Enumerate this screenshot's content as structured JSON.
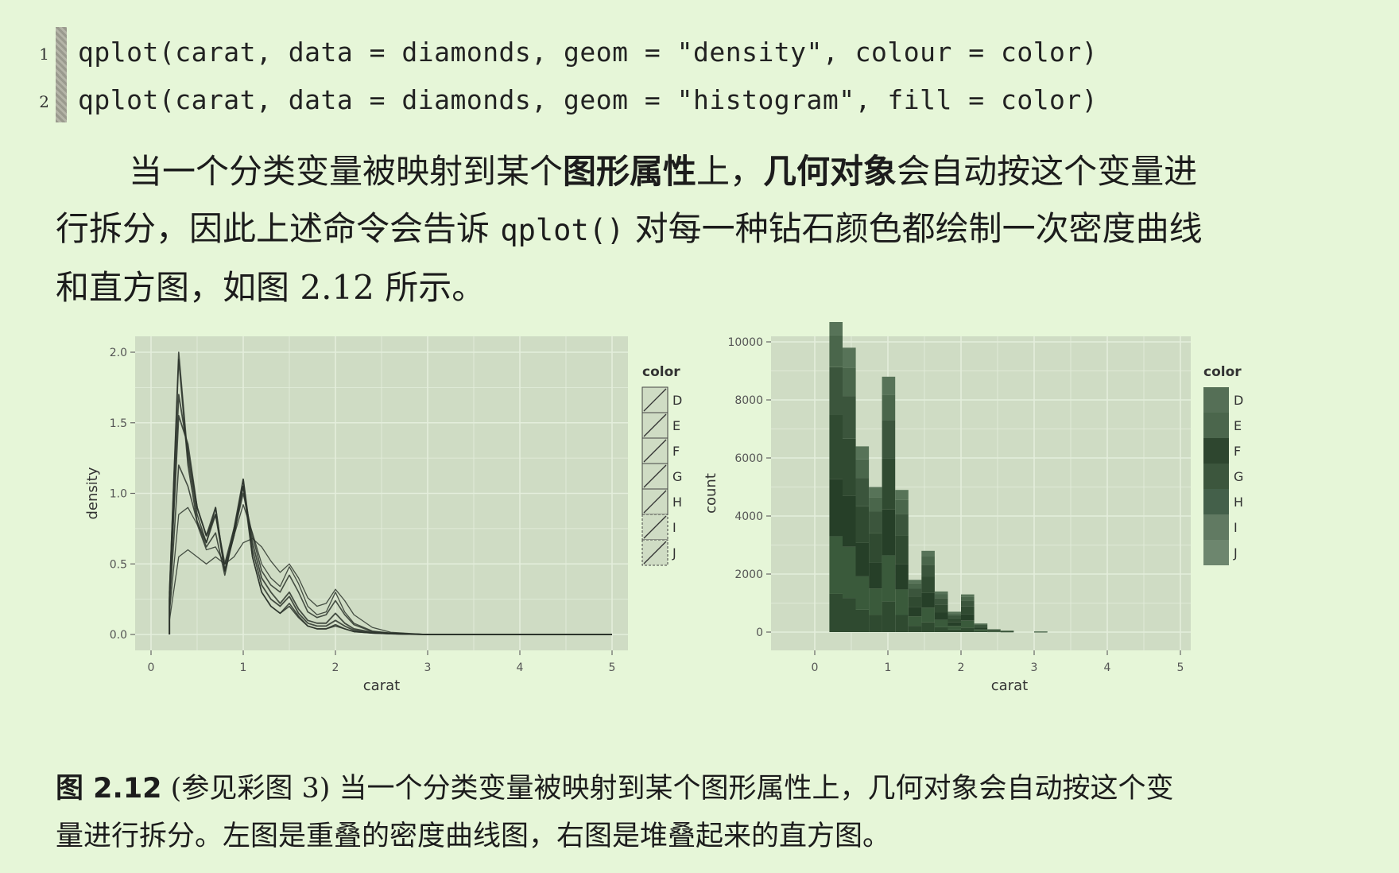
{
  "code": [
    {
      "num": "1",
      "text": "qplot(carat, data = diamonds, geom = \"density\", colour = color)"
    },
    {
      "num": "2",
      "text": "qplot(carat, data = diamonds, geom = \"histogram\", fill = color)"
    }
  ],
  "paragraph": {
    "p1": "当一个分类变量被映射到某个",
    "b1": "图形属性",
    "p2": "上，",
    "b2": "几何对象",
    "p3": "会自动按这个变量进",
    "p4": "行拆分，因此上述命令会告诉 ",
    "code": "qplot()",
    "p5": " 对每一种钻石颜色都绘制一次密度曲线",
    "p6": "和直方图，如图 2.12 所示。"
  },
  "caption": {
    "label": "图 2.12",
    "line1": " (参见彩图 3) 当一个分类变量被映射到某个图形属性上，几何对象会自动按这个变",
    "line2": "量进行拆分。左图是重叠的密度曲线图，右图是堆叠起来的直方图。"
  },
  "colors": {
    "page_bg": "#e6f6d8",
    "panel_bg": "#cfdcc4",
    "grid": "#e4eedc",
    "ink": "#2b342b"
  },
  "chart_data": [
    {
      "type": "line",
      "geom": "density",
      "xlabel": "carat",
      "ylabel": "density",
      "xlim": [
        0,
        5
      ],
      "ylim": [
        0,
        2.0
      ],
      "xticks": [
        "0",
        "1",
        "2",
        "3",
        "4",
        "5"
      ],
      "yticks": [
        "0.0",
        "0.5",
        "1.0",
        "1.5",
        "2.0"
      ],
      "legend": {
        "title": "color",
        "position": "right",
        "keys": [
          "D",
          "E",
          "F",
          "G",
          "H",
          "I",
          "J"
        ]
      },
      "x": [
        0.2,
        0.3,
        0.4,
        0.5,
        0.6,
        0.7,
        0.8,
        0.9,
        1.0,
        1.1,
        1.2,
        1.3,
        1.4,
        1.5,
        1.6,
        1.7,
        1.8,
        1.9,
        2.0,
        2.1,
        2.2,
        2.4,
        2.6,
        3.0,
        4.0,
        5.0
      ],
      "series": [
        {
          "name": "D",
          "values": [
            0.3,
            1.95,
            1.2,
            0.8,
            0.65,
            0.85,
            0.45,
            0.7,
            1.05,
            0.55,
            0.3,
            0.2,
            0.15,
            0.2,
            0.12,
            0.06,
            0.04,
            0.04,
            0.06,
            0.04,
            0.02,
            0.01,
            0.005,
            0.0,
            0.0,
            0.0
          ]
        },
        {
          "name": "E",
          "values": [
            0.3,
            2.0,
            1.25,
            0.85,
            0.65,
            0.9,
            0.45,
            0.7,
            1.1,
            0.55,
            0.3,
            0.2,
            0.15,
            0.22,
            0.13,
            0.06,
            0.04,
            0.04,
            0.07,
            0.04,
            0.02,
            0.01,
            0.005,
            0.0,
            0.0,
            0.0
          ]
        },
        {
          "name": "F",
          "values": [
            0.25,
            1.7,
            1.3,
            0.9,
            0.7,
            0.9,
            0.45,
            0.75,
            1.1,
            0.6,
            0.35,
            0.25,
            0.2,
            0.27,
            0.15,
            0.08,
            0.06,
            0.06,
            0.1,
            0.06,
            0.03,
            0.01,
            0.005,
            0.0,
            0.0,
            0.0
          ]
        },
        {
          "name": "G",
          "values": [
            0.25,
            1.55,
            1.35,
            0.9,
            0.7,
            0.85,
            0.5,
            0.75,
            1.05,
            0.65,
            0.4,
            0.3,
            0.22,
            0.3,
            0.18,
            0.1,
            0.08,
            0.08,
            0.15,
            0.08,
            0.04,
            0.015,
            0.005,
            0.0,
            0.0,
            0.0
          ]
        },
        {
          "name": "H",
          "values": [
            0.2,
            1.2,
            1.05,
            0.8,
            0.62,
            0.72,
            0.42,
            0.72,
            1.0,
            0.7,
            0.45,
            0.35,
            0.3,
            0.42,
            0.3,
            0.16,
            0.12,
            0.14,
            0.24,
            0.14,
            0.07,
            0.02,
            0.008,
            0.0,
            0.0,
            0.0
          ]
        },
        {
          "name": "I",
          "values": [
            0.15,
            0.85,
            0.9,
            0.78,
            0.6,
            0.62,
            0.5,
            0.7,
            0.92,
            0.72,
            0.5,
            0.4,
            0.34,
            0.48,
            0.36,
            0.2,
            0.14,
            0.16,
            0.3,
            0.16,
            0.08,
            0.025,
            0.01,
            0.0,
            0.0,
            0.0
          ]
        },
        {
          "name": "J",
          "values": [
            0.1,
            0.55,
            0.6,
            0.55,
            0.5,
            0.55,
            0.5,
            0.55,
            0.65,
            0.68,
            0.62,
            0.52,
            0.44,
            0.5,
            0.4,
            0.26,
            0.2,
            0.22,
            0.32,
            0.24,
            0.14,
            0.05,
            0.015,
            0.0,
            0.0,
            0.0
          ]
        }
      ]
    },
    {
      "type": "bar",
      "geom": "histogram",
      "stacked": true,
      "xlabel": "carat",
      "ylabel": "count",
      "xlim": [
        0,
        5
      ],
      "ylim": [
        0,
        10000
      ],
      "xticks": [
        "0",
        "1",
        "2",
        "3",
        "4",
        "5"
      ],
      "yticks": [
        "0",
        "2000",
        "4000",
        "6000",
        "8000",
        "10000"
      ],
      "legend": {
        "title": "color",
        "position": "right",
        "keys": [
          "D",
          "E",
          "F",
          "G",
          "H",
          "I",
          "J"
        ]
      },
      "bin_width": 0.18,
      "bin_left": [
        0.2,
        0.38,
        0.56,
        0.74,
        0.92,
        1.1,
        1.28,
        1.46,
        1.64,
        1.82,
        2.0,
        2.18,
        2.36,
        2.54,
        3.0
      ],
      "totals": [
        11000,
        9800,
        6400,
        5000,
        8800,
        4900,
        1800,
        2800,
        1400,
        700,
        1300,
        300,
        100,
        50,
        20
      ]
    }
  ]
}
